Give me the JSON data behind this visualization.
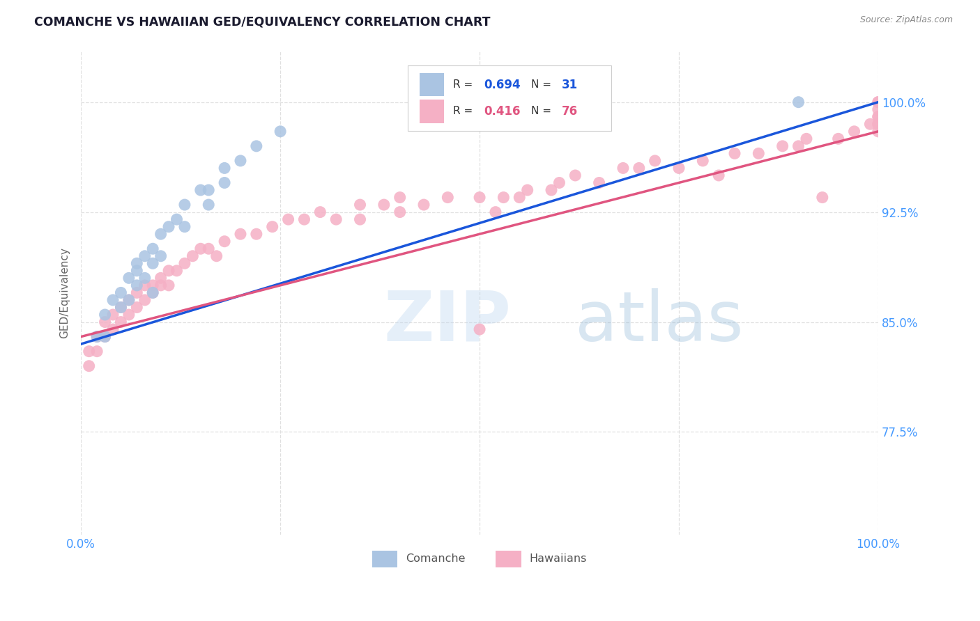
{
  "title": "COMANCHE VS HAWAIIAN GED/EQUIVALENCY CORRELATION CHART",
  "source": "Source: ZipAtlas.com",
  "ylabel": "GED/Equivalency",
  "ytick_labels": [
    "77.5%",
    "85.0%",
    "92.5%",
    "100.0%"
  ],
  "ytick_values": [
    77.5,
    85.0,
    92.5,
    100.0
  ],
  "xlim": [
    0.0,
    100.0
  ],
  "ylim": [
    70.5,
    103.5
  ],
  "legend_r_comanche": "0.694",
  "legend_n_comanche": "31",
  "legend_r_hawaiian": "0.416",
  "legend_n_hawaiian": "76",
  "comanche_color": "#aac4e2",
  "hawaiian_color": "#f5b0c5",
  "comanche_line_color": "#1a56db",
  "hawaiian_line_color": "#e05580",
  "comanche_x": [
    2,
    3,
    3,
    4,
    5,
    5,
    6,
    6,
    7,
    7,
    7,
    8,
    8,
    9,
    9,
    9,
    10,
    10,
    11,
    12,
    13,
    13,
    15,
    16,
    16,
    18,
    18,
    20,
    22,
    25,
    90
  ],
  "comanche_y": [
    84,
    85.5,
    84,
    86.5,
    87,
    86,
    88,
    86.5,
    89,
    87.5,
    88.5,
    89.5,
    88,
    90,
    89,
    87,
    91,
    89.5,
    91.5,
    92,
    93,
    91.5,
    94,
    94,
    93,
    95.5,
    94.5,
    96,
    97,
    98,
    100
  ],
  "hawaiian_x": [
    1,
    1,
    2,
    2,
    3,
    3,
    4,
    4,
    5,
    5,
    6,
    6,
    7,
    7,
    8,
    8,
    9,
    9,
    10,
    10,
    11,
    11,
    12,
    13,
    14,
    15,
    16,
    17,
    18,
    20,
    22,
    24,
    26,
    28,
    30,
    32,
    35,
    35,
    38,
    40,
    40,
    43,
    46,
    50,
    50,
    53,
    56,
    59,
    60,
    62,
    65,
    68,
    70,
    72,
    75,
    78,
    80,
    82,
    85,
    88,
    90,
    91,
    93,
    95,
    97,
    99,
    100,
    100,
    100,
    100,
    100,
    100,
    100,
    100,
    52,
    55
  ],
  "hawaiian_y": [
    83,
    82,
    84,
    83,
    85,
    84,
    85.5,
    84.5,
    86,
    85,
    86.5,
    85.5,
    87,
    86,
    87.5,
    86.5,
    87.5,
    87,
    88,
    87.5,
    88.5,
    87.5,
    88.5,
    89,
    89.5,
    90,
    90,
    89.5,
    90.5,
    91,
    91,
    91.5,
    92,
    92,
    92.5,
    92,
    93,
    92,
    93,
    92.5,
    93.5,
    93,
    93.5,
    84.5,
    93.5,
    93.5,
    94,
    94,
    94.5,
    95,
    94.5,
    95.5,
    95.5,
    96,
    95.5,
    96,
    95,
    96.5,
    96.5,
    97,
    97,
    97.5,
    93.5,
    97.5,
    98,
    98.5,
    99,
    98.5,
    99,
    98,
    98.5,
    99.5,
    100,
    100,
    92.5,
    93.5
  ],
  "comanche_line_x0": 0,
  "comanche_line_x1": 100,
  "comanche_line_y0": 83.5,
  "comanche_line_y1": 100,
  "hawaiian_line_x0": 0,
  "hawaiian_line_x1": 100,
  "hawaiian_line_y0": 84.0,
  "hawaiian_line_y1": 98.0,
  "watermark_text": "ZIPatlas",
  "background_color": "#ffffff",
  "grid_color": "#e0e0e0",
  "title_color": "#1a1a2e",
  "source_color": "#888888",
  "ylabel_color": "#666666",
  "tick_label_color": "#4499ff"
}
